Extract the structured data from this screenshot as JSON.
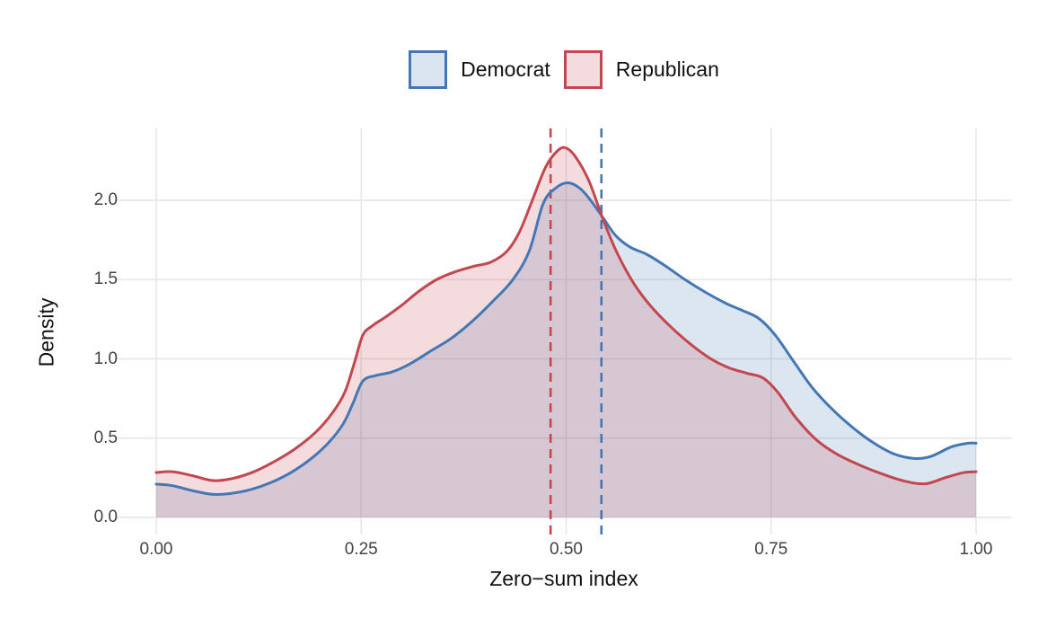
{
  "figure": {
    "background": "#FFFFFF",
    "grid_color": "#E8E8E8"
  },
  "legend": {
    "items": [
      {
        "label": "Democrat",
        "line_color": "#4478B5",
        "fill_color": "#DBE5F2"
      },
      {
        "label": "Republican",
        "line_color": "#C2474F",
        "fill_color": "#F4DCDE"
      }
    ]
  },
  "chart_data": {
    "type": "area",
    "subtype": "kernel-density",
    "title": "",
    "xlabel": "Zero−sum index",
    "ylabel": "Density",
    "xlim": [
      0,
      1
    ],
    "ylim": [
      0,
      2.4
    ],
    "grid": true,
    "legend_position": "top-center",
    "x_tick_labels": [
      "0.00",
      "0.25",
      "0.50",
      "0.75",
      "1.00"
    ],
    "x_tick_values": [
      0,
      0.25,
      0.5,
      0.75,
      1
    ],
    "y_tick_labels": [
      "0.0",
      "0.5",
      "1.0",
      "1.5",
      "2.0"
    ],
    "y_tick_values": [
      0,
      0.5,
      1,
      1.5,
      2
    ],
    "series": [
      {
        "name": "Democrat",
        "color": "#4478B5",
        "fill": "rgba(68,120,181,0.19)",
        "mean_vline_x": 0.543,
        "points": [
          [
            0.0,
            0.21
          ],
          [
            0.02,
            0.2
          ],
          [
            0.045,
            0.168
          ],
          [
            0.068,
            0.146
          ],
          [
            0.09,
            0.15
          ],
          [
            0.115,
            0.175
          ],
          [
            0.14,
            0.22
          ],
          [
            0.165,
            0.285
          ],
          [
            0.19,
            0.375
          ],
          [
            0.21,
            0.47
          ],
          [
            0.228,
            0.59
          ],
          [
            0.24,
            0.72
          ],
          [
            0.252,
            0.86
          ],
          [
            0.268,
            0.895
          ],
          [
            0.288,
            0.918
          ],
          [
            0.31,
            0.97
          ],
          [
            0.335,
            1.05
          ],
          [
            0.36,
            1.13
          ],
          [
            0.385,
            1.235
          ],
          [
            0.41,
            1.36
          ],
          [
            0.435,
            1.5
          ],
          [
            0.455,
            1.68
          ],
          [
            0.472,
            1.98
          ],
          [
            0.488,
            2.08
          ],
          [
            0.503,
            2.11
          ],
          [
            0.518,
            2.07
          ],
          [
            0.532,
            1.985
          ],
          [
            0.545,
            1.89
          ],
          [
            0.56,
            1.78
          ],
          [
            0.578,
            1.705
          ],
          [
            0.598,
            1.66
          ],
          [
            0.62,
            1.59
          ],
          [
            0.645,
            1.5
          ],
          [
            0.67,
            1.42
          ],
          [
            0.695,
            1.35
          ],
          [
            0.715,
            1.305
          ],
          [
            0.735,
            1.255
          ],
          [
            0.755,
            1.15
          ],
          [
            0.778,
            0.98
          ],
          [
            0.8,
            0.82
          ],
          [
            0.825,
            0.68
          ],
          [
            0.85,
            0.565
          ],
          [
            0.875,
            0.47
          ],
          [
            0.9,
            0.4
          ],
          [
            0.925,
            0.372
          ],
          [
            0.945,
            0.385
          ],
          [
            0.97,
            0.445
          ],
          [
            0.99,
            0.468
          ],
          [
            1.0,
            0.468
          ]
        ]
      },
      {
        "name": "Republican",
        "color": "#C2474F",
        "fill": "rgba(194,71,79,0.19)",
        "mean_vline_x": 0.481,
        "points": [
          [
            0.0,
            0.283
          ],
          [
            0.02,
            0.288
          ],
          [
            0.045,
            0.262
          ],
          [
            0.07,
            0.232
          ],
          [
            0.095,
            0.248
          ],
          [
            0.12,
            0.29
          ],
          [
            0.145,
            0.355
          ],
          [
            0.17,
            0.435
          ],
          [
            0.195,
            0.54
          ],
          [
            0.215,
            0.66
          ],
          [
            0.23,
            0.79
          ],
          [
            0.242,
            0.98
          ],
          [
            0.252,
            1.15
          ],
          [
            0.264,
            1.21
          ],
          [
            0.28,
            1.265
          ],
          [
            0.3,
            1.34
          ],
          [
            0.32,
            1.425
          ],
          [
            0.342,
            1.5
          ],
          [
            0.365,
            1.55
          ],
          [
            0.388,
            1.585
          ],
          [
            0.408,
            1.61
          ],
          [
            0.428,
            1.68
          ],
          [
            0.443,
            1.8
          ],
          [
            0.458,
            1.99
          ],
          [
            0.475,
            2.21
          ],
          [
            0.49,
            2.315
          ],
          [
            0.5,
            2.33
          ],
          [
            0.512,
            2.27
          ],
          [
            0.528,
            2.12
          ],
          [
            0.545,
            1.88
          ],
          [
            0.562,
            1.67
          ],
          [
            0.582,
            1.48
          ],
          [
            0.602,
            1.34
          ],
          [
            0.625,
            1.215
          ],
          [
            0.65,
            1.1
          ],
          [
            0.675,
            1.005
          ],
          [
            0.698,
            0.945
          ],
          [
            0.72,
            0.91
          ],
          [
            0.74,
            0.88
          ],
          [
            0.758,
            0.79
          ],
          [
            0.78,
            0.63
          ],
          [
            0.805,
            0.49
          ],
          [
            0.83,
            0.4
          ],
          [
            0.858,
            0.33
          ],
          [
            0.885,
            0.275
          ],
          [
            0.912,
            0.23
          ],
          [
            0.938,
            0.212
          ],
          [
            0.962,
            0.25
          ],
          [
            0.985,
            0.283
          ],
          [
            1.0,
            0.288
          ]
        ]
      }
    ]
  }
}
